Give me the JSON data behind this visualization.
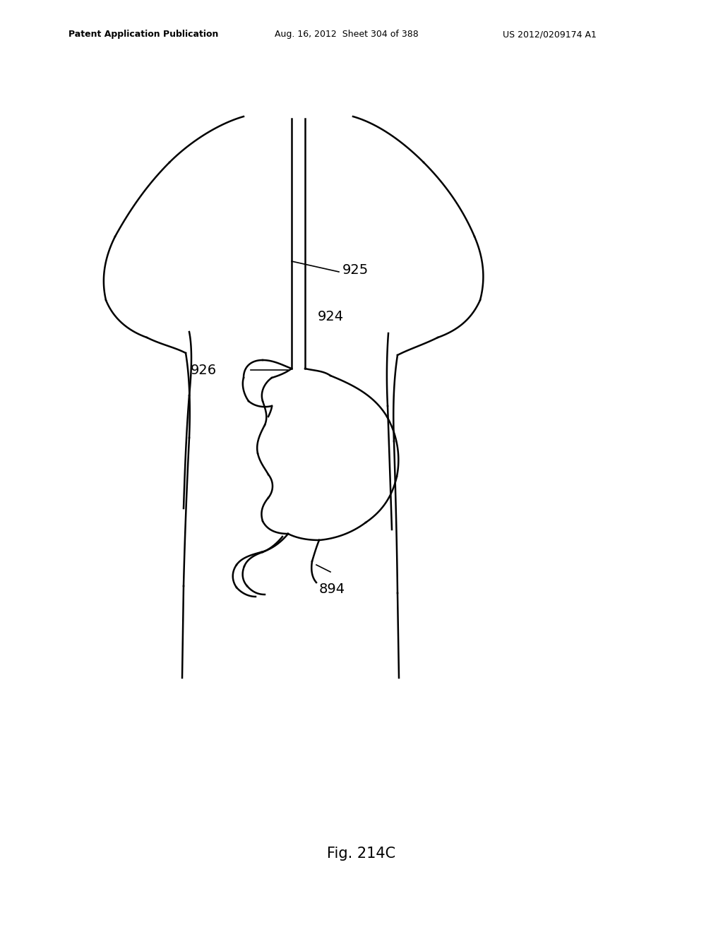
{
  "bg_color": "#ffffff",
  "line_color": "#000000",
  "line_width": 1.8,
  "header_left": "Patent Application Publication",
  "header_mid": "Aug. 16, 2012  Sheet 304 of 388",
  "header_right": "US 2012/0209174 A1",
  "fig_label": "Fig. 214C"
}
